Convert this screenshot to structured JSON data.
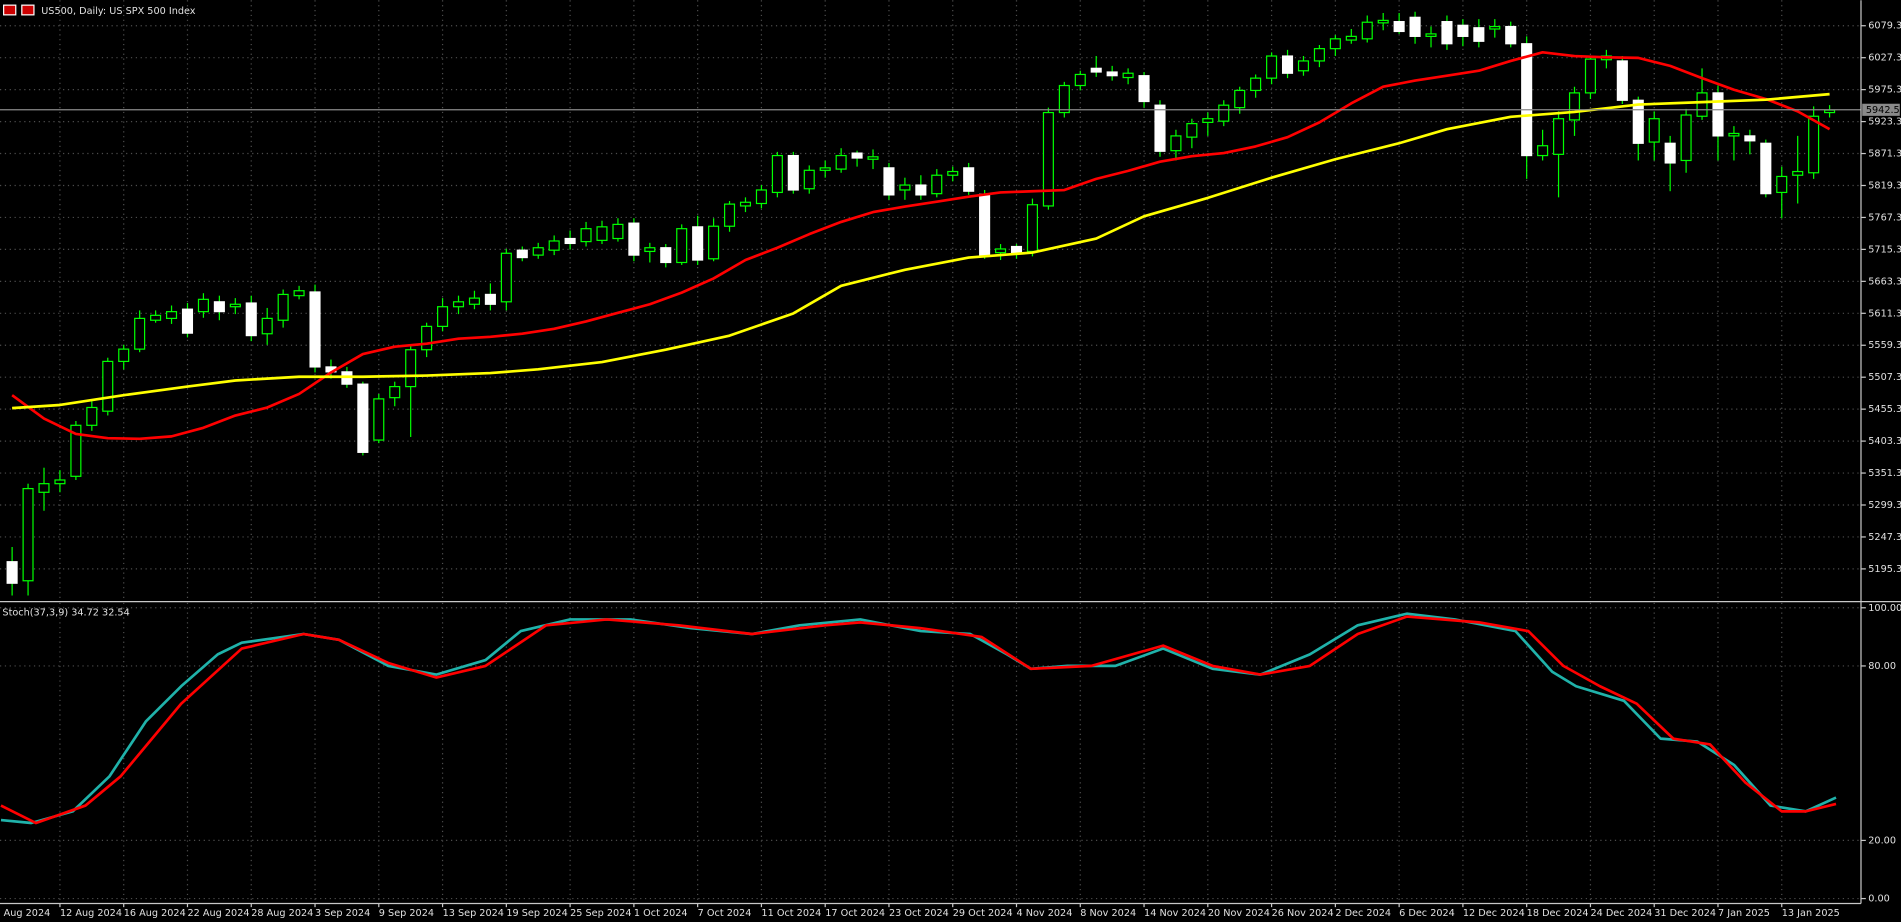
{
  "chart_data": [
    {
      "type": "candlestick",
      "title": "US500, Daily: US SPX 500 Index",
      "xlim": [
        -0.76,
        115.97
      ],
      "xticks": [
        {
          "value": -1,
          "label": "Aug 2024"
        },
        {
          "value": 3,
          "label": "12 Aug 2024"
        },
        {
          "value": 7,
          "label": "16 Aug 2024"
        },
        {
          "value": 11,
          "label": "22 Aug 2024"
        },
        {
          "value": 15,
          "label": "28 Aug 2024"
        },
        {
          "value": 19,
          "label": "3 Sep 2024"
        },
        {
          "value": 23,
          "label": "9 Sep 2024"
        },
        {
          "value": 27,
          "label": "13 Sep 2024"
        },
        {
          "value": 31,
          "label": "19 Sep 2024"
        },
        {
          "value": 35,
          "label": "25 Sep 2024"
        },
        {
          "value": 39,
          "label": "1 Oct 2024"
        },
        {
          "value": 43,
          "label": "7 Oct 2024"
        },
        {
          "value": 47,
          "label": "11 Oct 2024"
        },
        {
          "value": 51,
          "label": "17 Oct 2024"
        },
        {
          "value": 55,
          "label": "23 Oct 2024"
        },
        {
          "value": 59,
          "label": "29 Oct 2024"
        },
        {
          "value": 63,
          "label": "4 Nov 2024"
        },
        {
          "value": 67,
          "label": "8 Nov 2024"
        },
        {
          "value": 71,
          "label": "14 Nov 2024"
        },
        {
          "value": 75,
          "label": "20 Nov 2024"
        },
        {
          "value": 79,
          "label": "26 Nov 2024"
        },
        {
          "value": 83,
          "label": "2 Dec 2024"
        },
        {
          "value": 87,
          "label": "6 Dec 2024"
        },
        {
          "value": 91,
          "label": "12 Dec 2024"
        },
        {
          "value": 95,
          "label": "18 Dec 2024"
        },
        {
          "value": 99,
          "label": "24 Dec 2024"
        },
        {
          "value": 103,
          "label": "31 Dec 2024"
        },
        {
          "value": 107,
          "label": "7 Jan 2025"
        },
        {
          "value": 111,
          "label": "13 Jan 2025"
        }
      ],
      "ylim": [
        5144.0,
        6120.7
      ],
      "yticks": [
        6079.3,
        6027.3,
        5975.3,
        5923.3,
        5871.3,
        5819.3,
        5767.3,
        5715.3,
        5663.3,
        5611.3,
        5559.3,
        5507.3,
        5455.3,
        5403.3,
        5351.3,
        5299.3,
        5247.3,
        5195.3
      ],
      "grid": true,
      "last_price": 5942.5,
      "bull_color": "#00ff00",
      "bear_color": "#ffffff",
      "open": [
        5207,
        5176,
        5320,
        5334,
        5346,
        5429,
        5452,
        5533,
        5553,
        5600,
        5603,
        5618,
        5614,
        5630,
        5622,
        5628,
        5578,
        5600,
        5640,
        5646,
        5524,
        5516,
        5496,
        5405,
        5474,
        5492,
        5552,
        5590,
        5622,
        5626,
        5642,
        5630,
        5714,
        5706,
        5714,
        5733,
        5728,
        5730,
        5733,
        5758,
        5712,
        5718,
        5694,
        5752,
        5700,
        5753,
        5786,
        5790,
        5808,
        5868,
        5814,
        5844,
        5846,
        5872,
        5862,
        5848,
        5812,
        5820,
        5806,
        5836,
        5848,
        5805,
        5710,
        5720,
        5712,
        5786,
        5938,
        5982,
        6010,
        6004,
        5995,
        5998,
        5950,
        5876,
        5898,
        5922,
        5924,
        5946,
        5974,
        5994,
        6030,
        6006,
        6022,
        6042,
        6056,
        6058,
        6084,
        6086,
        6093,
        6062,
        6086,
        6080,
        6076,
        6074,
        6078,
        6050,
        5868,
        5870,
        5926,
        5970,
        6024,
        6022,
        5958,
        5890,
        5888,
        5860,
        5932,
        5970,
        5900,
        5900,
        5888,
        5808,
        5836,
        5840,
        5938
      ],
      "high": [
        5231,
        5334,
        5360,
        5356,
        5436,
        5468,
        5539,
        5560,
        5616,
        5616,
        5624,
        5628,
        5644,
        5640,
        5636,
        5640,
        5620,
        5650,
        5656,
        5658,
        5536,
        5524,
        5500,
        5480,
        5500,
        5560,
        5596,
        5636,
        5640,
        5648,
        5660,
        5716,
        5720,
        5726,
        5738,
        5746,
        5760,
        5762,
        5766,
        5766,
        5726,
        5724,
        5756,
        5770,
        5766,
        5794,
        5800,
        5820,
        5874,
        5874,
        5852,
        5860,
        5880,
        5876,
        5878,
        5856,
        5832,
        5836,
        5846,
        5850,
        5856,
        5812,
        5724,
        5724,
        5798,
        5946,
        5988,
        6006,
        6030,
        6014,
        6010,
        6004,
        5958,
        5910,
        5928,
        5938,
        5958,
        5980,
        6000,
        6036,
        6040,
        6030,
        6048,
        6064,
        6074,
        6096,
        6100,
        6100,
        6102,
        6078,
        6096,
        6090,
        6090,
        6090,
        6086,
        6062,
        5910,
        5940,
        5980,
        6030,
        6040,
        6030,
        5964,
        5940,
        5900,
        5944,
        6010,
        5982,
        5916,
        5910,
        5894,
        5850,
        5900,
        5948,
        5950
      ],
      "low": [
        5152,
        5152,
        5290,
        5320,
        5340,
        5420,
        5445,
        5520,
        5548,
        5596,
        5594,
        5572,
        5604,
        5600,
        5610,
        5566,
        5560,
        5588,
        5634,
        5515,
        5505,
        5490,
        5380,
        5400,
        5460,
        5410,
        5540,
        5582,
        5610,
        5618,
        5616,
        5616,
        5696,
        5700,
        5706,
        5715,
        5720,
        5724,
        5728,
        5696,
        5694,
        5686,
        5690,
        5690,
        5696,
        5744,
        5776,
        5782,
        5800,
        5806,
        5806,
        5832,
        5840,
        5850,
        5846,
        5796,
        5796,
        5796,
        5800,
        5826,
        5804,
        5700,
        5698,
        5700,
        5704,
        5780,
        5930,
        5974,
        5996,
        5990,
        5984,
        5946,
        5866,
        5860,
        5880,
        5900,
        5916,
        5936,
        5962,
        5984,
        5994,
        5998,
        6012,
        6030,
        6050,
        6052,
        6072,
        6066,
        6050,
        6044,
        6040,
        6046,
        6044,
        6060,
        6044,
        5830,
        5860,
        5800,
        5900,
        5960,
        6010,
        5952,
        5860,
        5860,
        5810,
        5840,
        5926,
        5860,
        5860,
        5870,
        5800,
        5766,
        5790,
        5830,
        5930
      ],
      "close": [
        5172,
        5326,
        5334,
        5340,
        5429,
        5458,
        5533,
        5553,
        5603,
        5608,
        5614,
        5579,
        5634,
        5614,
        5626,
        5575,
        5603,
        5642,
        5648,
        5524,
        5516,
        5496,
        5385,
        5472,
        5492,
        5552,
        5590,
        5622,
        5630,
        5636,
        5626,
        5709,
        5702,
        5718,
        5729,
        5725,
        5749,
        5752,
        5756,
        5706,
        5718,
        5694,
        5749,
        5698,
        5753,
        5789,
        5792,
        5812,
        5868,
        5812,
        5844,
        5848,
        5868,
        5864,
        5866,
        5804,
        5820,
        5804,
        5836,
        5842,
        5810,
        5706,
        5716,
        5708,
        5788,
        5938,
        5982,
        6000,
        6004,
        5998,
        6002,
        5956,
        5875,
        5900,
        5920,
        5928,
        5950,
        5974,
        5994,
        6030,
        6002,
        6022,
        6042,
        6058,
        6062,
        6085,
        6088,
        6070,
        6062,
        6066,
        6050,
        6062,
        6054,
        6078,
        6050,
        5868,
        5884,
        5928,
        5970,
        6025,
        6030,
        5958,
        5888,
        5928,
        5856,
        5934,
        5970,
        5900,
        5904,
        5892,
        5806,
        5834,
        5842,
        5932,
        5942
      ],
      "series": [
        {
          "color": "#ff0000",
          "x": [
            0,
            2,
            4,
            6,
            8,
            10,
            12,
            14,
            16,
            18,
            20,
            22,
            24,
            26,
            28,
            30,
            32,
            34,
            36,
            38,
            40,
            42,
            44,
            46,
            48,
            50,
            52,
            54,
            56,
            58,
            60,
            62,
            64,
            66,
            68,
            70,
            72,
            74,
            76,
            78,
            80,
            82,
            84,
            86,
            88,
            90,
            92,
            94,
            96,
            98,
            100,
            102,
            104,
            106,
            108,
            110,
            112,
            114
          ],
          "values": [
            5478,
            5440,
            5415,
            5408,
            5407,
            5411,
            5425,
            5445,
            5458,
            5480,
            5515,
            5545,
            5557,
            5562,
            5570,
            5573,
            5578,
            5586,
            5598,
            5612,
            5626,
            5645,
            5668,
            5698,
            5718,
            5740,
            5760,
            5776,
            5785,
            5793,
            5801,
            5808,
            5810,
            5812,
            5830,
            5843,
            5858,
            5867,
            5872,
            5883,
            5898,
            5922,
            5953,
            5980,
            5990,
            5998,
            6006,
            6022,
            6036,
            6030,
            6028,
            6027,
            6014,
            5994,
            5975,
            5960,
            5940,
            5911
          ]
        },
        {
          "color": "#ffff00",
          "x": [
            0,
            3,
            7,
            11,
            14,
            18,
            22,
            26,
            30,
            33,
            37,
            41,
            45,
            49,
            52,
            56,
            60,
            64,
            68,
            71,
            75,
            79,
            83,
            87,
            90,
            94,
            98,
            102,
            106,
            110,
            114
          ],
          "values": [
            5457,
            5462,
            5478,
            5492,
            5502,
            5508,
            5508,
            5510,
            5514,
            5520,
            5532,
            5552,
            5575,
            5611,
            5656,
            5682,
            5702,
            5710,
            5733,
            5769,
            5799,
            5832,
            5862,
            5888,
            5911,
            5931,
            5939,
            5951,
            5955,
            5959,
            5968
          ]
        }
      ]
    },
    {
      "type": "line",
      "title": "Stoch(37,3,9) 34.72 32.54",
      "xlim": [
        -0.76,
        115.97
      ],
      "ylim": [
        -1.7,
        101.7
      ],
      "yticks": [
        {
          "value": 100,
          "label": "100.00"
        },
        {
          "value": 80,
          "label": "80.00"
        },
        {
          "value": 20,
          "label": "20.00"
        },
        {
          "value": 0,
          "label": "0.00"
        }
      ],
      "grid": true,
      "series": [
        {
          "color": "#20b2aa",
          "x": [
            -0.7,
            1.2,
            3.8,
            6.1,
            8.4,
            10.6,
            12.9,
            14.4,
            18.3,
            20.5,
            23.6,
            26.6,
            29.7,
            31.9,
            35,
            38.8,
            42.6,
            46.4,
            49.4,
            53.2,
            57,
            60.1,
            62.4,
            63.9,
            66.2,
            69.2,
            72.2,
            75.3,
            78.3,
            81.4,
            84.4,
            87.5,
            90.5,
            94.3,
            96.6,
            98.1,
            101.1,
            103.4,
            105.7,
            108,
            110.3,
            112.5,
            114.4
          ],
          "values": [
            27,
            26,
            30,
            42,
            61,
            73,
            84,
            88,
            91,
            89,
            80,
            77,
            82,
            92,
            96,
            96,
            93,
            91,
            94,
            96,
            92,
            91,
            84,
            79,
            80,
            80,
            86,
            79,
            77,
            84,
            94,
            98,
            96,
            92,
            78,
            73,
            68,
            55,
            54,
            46,
            32,
            30,
            34.72
          ]
        },
        {
          "color": "#ff0000",
          "x": [
            -0.7,
            1.5,
            4.6,
            6.8,
            10.6,
            14.4,
            18.3,
            20.5,
            23.6,
            26.6,
            29.7,
            33.5,
            37.3,
            41.8,
            46.4,
            51,
            53.2,
            57,
            60.8,
            63.9,
            67.7,
            72.2,
            75.3,
            78.3,
            81.4,
            84.4,
            87.5,
            92,
            95.1,
            97.3,
            99.6,
            101.9,
            104.2,
            106.5,
            108.7,
            111,
            112.5,
            114.4
          ],
          "values": [
            32,
            26,
            32,
            42,
            67,
            86,
            91,
            89,
            81,
            76,
            80,
            94,
            96,
            94,
            91,
            94,
            95,
            93,
            90,
            79,
            80,
            87,
            80,
            77,
            80,
            91,
            97,
            95,
            92,
            80,
            73,
            67,
            55,
            53,
            40,
            30,
            30,
            32.54
          ]
        }
      ]
    }
  ]
}
